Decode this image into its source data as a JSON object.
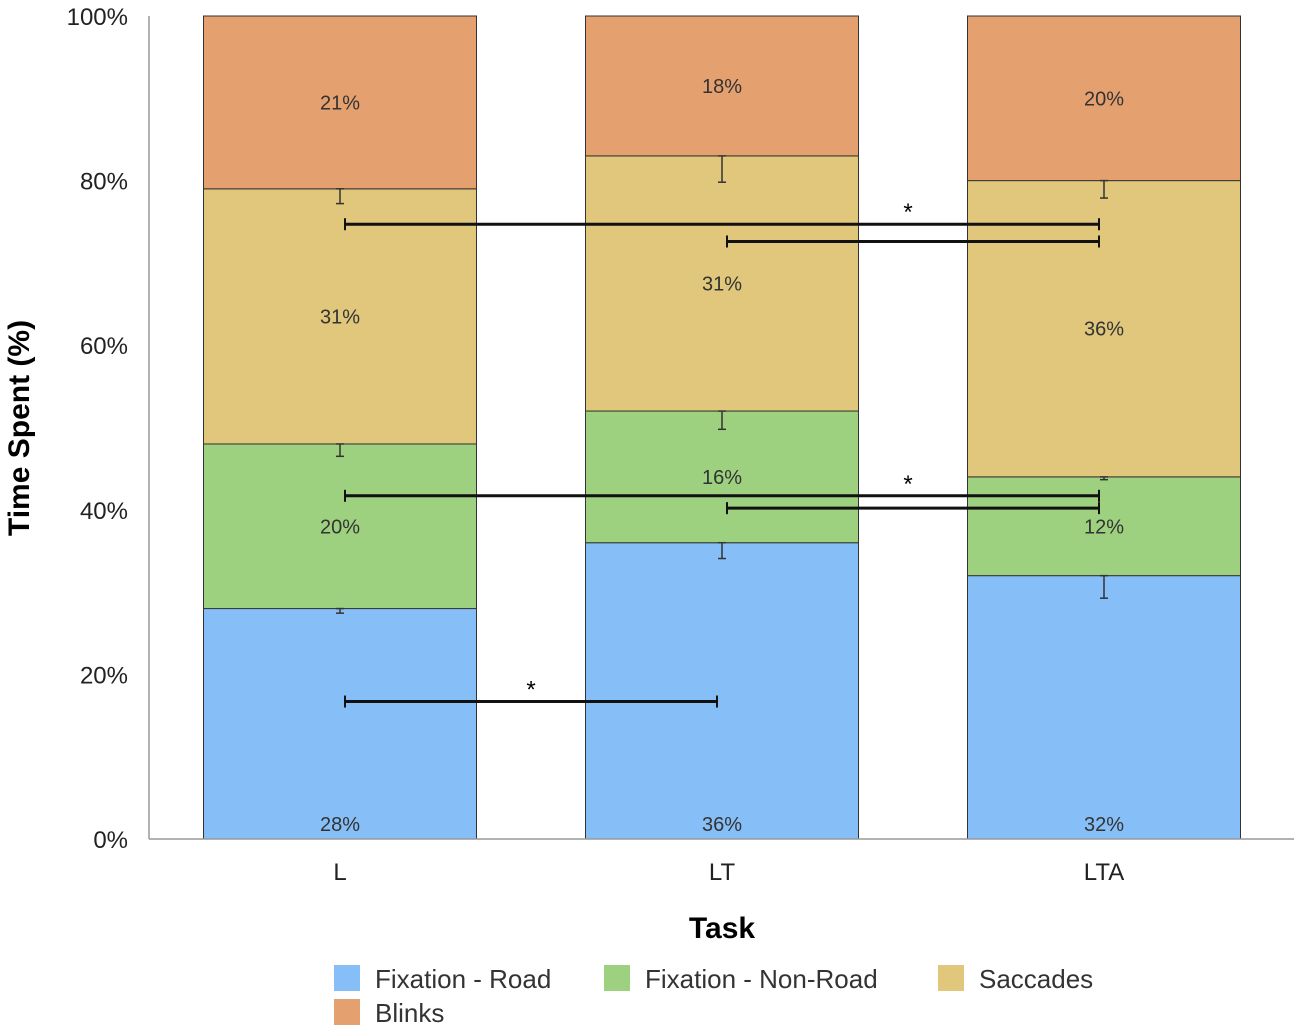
{
  "chart_data": {
    "type": "bar",
    "stacked": true,
    "title": "",
    "xlabel": "Task",
    "ylabel": "Time Spent (%)",
    "ylim": [
      0,
      100
    ],
    "yticks": [
      "0%",
      "20%",
      "40%",
      "60%",
      "80%",
      "100%"
    ],
    "categories": [
      "L",
      "LT",
      "LTA"
    ],
    "series": [
      {
        "name": "Fixation - Road",
        "color": "#86bff8",
        "values": [
          28,
          36,
          32
        ],
        "labels": [
          "28%",
          "36%",
          "32%"
        ],
        "error_tops": [
          29.5,
          36.5,
          31.5
        ]
      },
      {
        "name": "Fixation - Non-Road",
        "color": "#9dd17f",
        "values": [
          20,
          16,
          12
        ],
        "labels": [
          "20%",
          "16%",
          "12%"
        ],
        "error_tops": [
          48.2,
          51.3,
          45.0
        ]
      },
      {
        "name": "Saccades",
        "color": "#e0c77c",
        "values": [
          31,
          31,
          36
        ],
        "labels": [
          "31%",
          "31%",
          "36%"
        ],
        "error_tops": [
          79.4,
          82.0,
          80.3
        ]
      },
      {
        "name": "Blinks",
        "color": "#e5a070",
        "values": [
          21,
          18,
          20
        ],
        "labels": [
          "21%",
          "18%",
          "20%"
        ],
        "error_tops": []
      }
    ],
    "significance": [
      {
        "from": "L",
        "to": "LTA",
        "y": 74.7,
        "label": "*"
      },
      {
        "from": "LT",
        "to": "LTA",
        "y": 72.6,
        "label": ""
      },
      {
        "from": "L",
        "to": "LTA",
        "y": 41.7,
        "label": "*"
      },
      {
        "from": "LT",
        "to": "LTA",
        "y": 40.2,
        "label": ""
      },
      {
        "from": "L",
        "to": "LT",
        "y": 16.7,
        "label": "*"
      }
    ],
    "legend_position": "bottom",
    "grid": false
  }
}
